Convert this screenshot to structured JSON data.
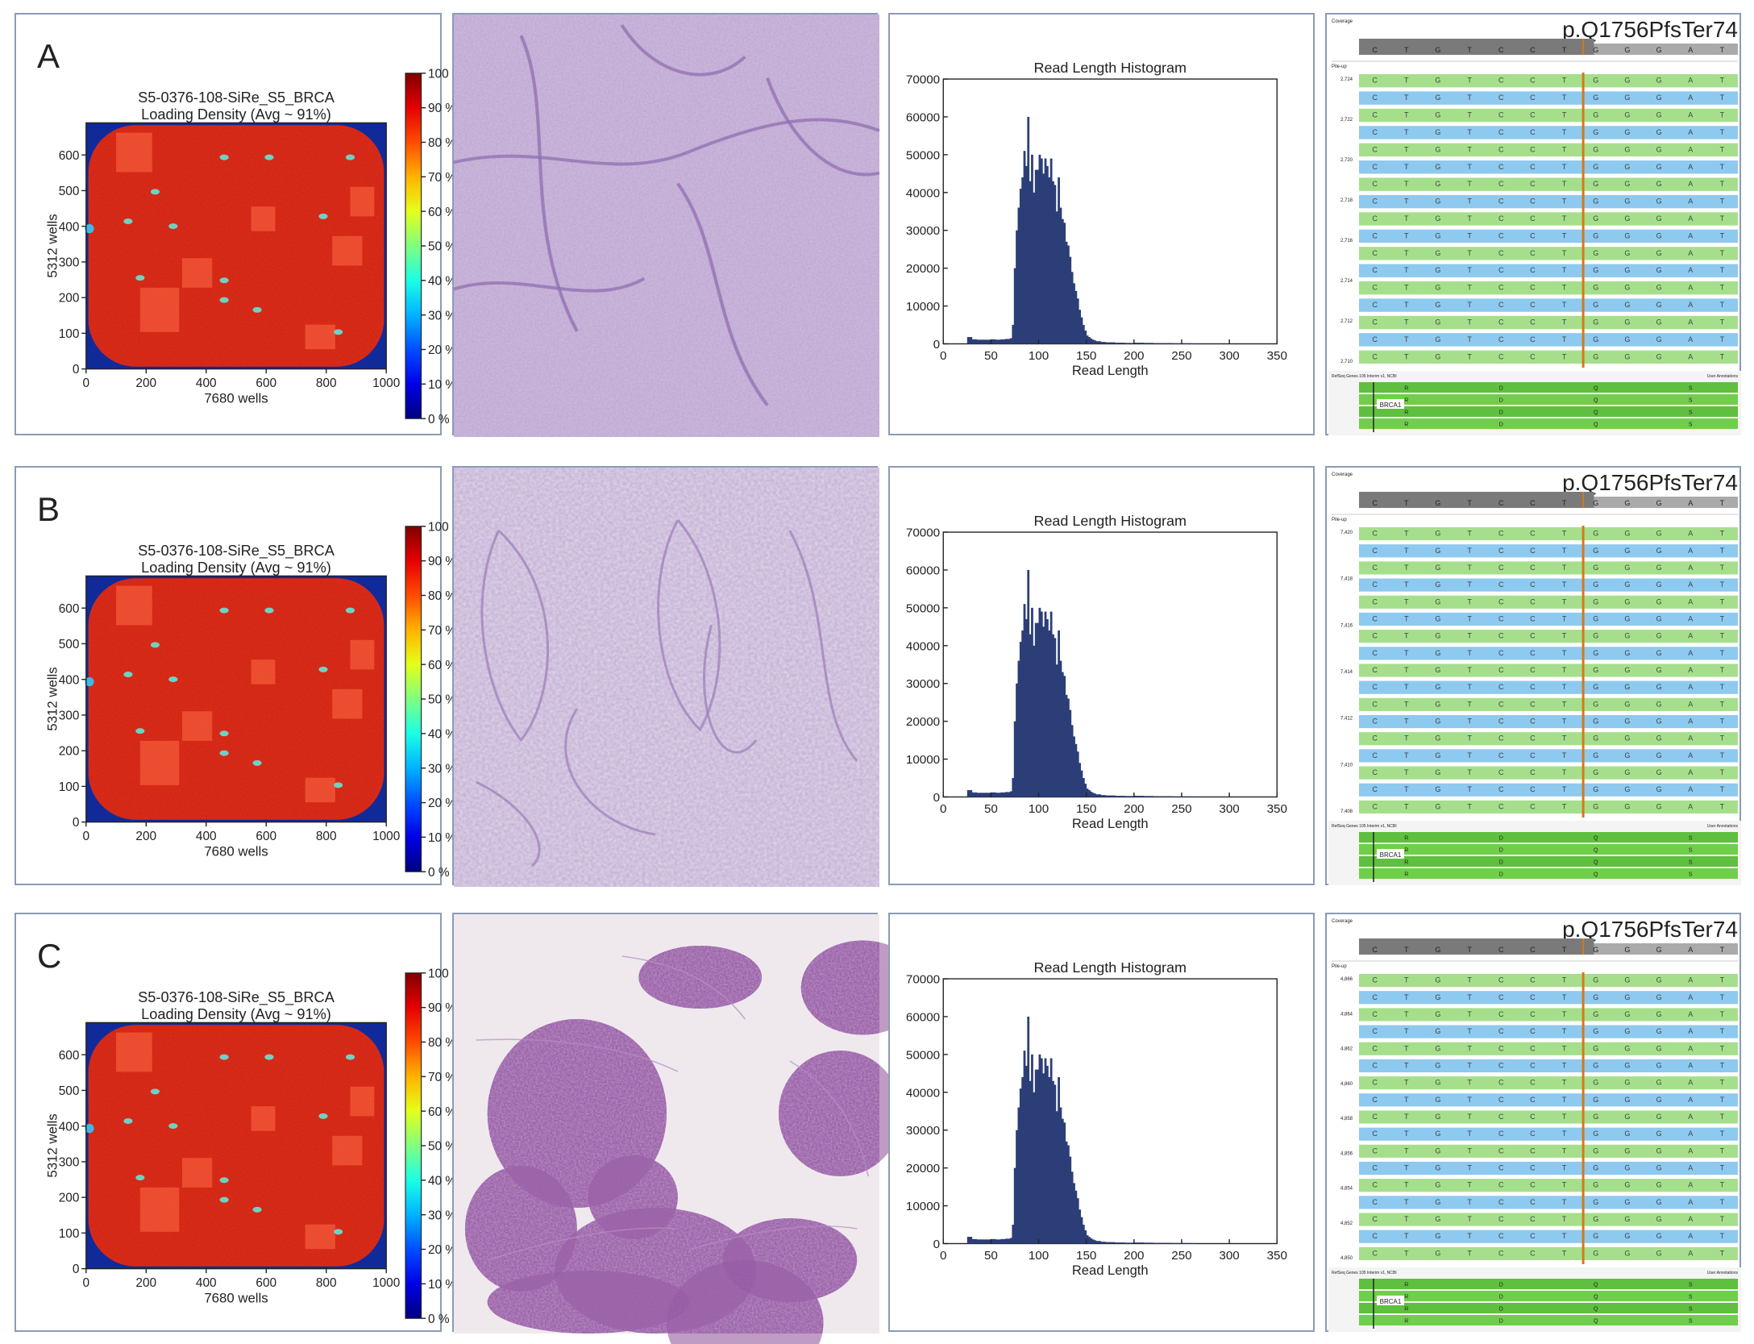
{
  "rows": [
    {
      "label": "A",
      "chip": {
        "title": "S5-0376-108-SiRe_S5_BRCA",
        "subtitle": "Loading Density (Avg ~ 91%)",
        "xlabel": "7680 wells",
        "ylabel": "5312 wells"
      },
      "tissue": "he",
      "histogram": {
        "title": "Read Length Histogram",
        "xlabel": "Read Length"
      },
      "igv": {
        "mutation": "p.Q1756PfsTer74",
        "gene": "BRCA1",
        "coverage_label": "Coverage",
        "pileup_label": "Pile-up",
        "annotation_left": "RefSeq Genes 105 Interim v1, NCBI",
        "annotation_right": "User Annotations",
        "ticks": [
          "2,724",
          "2,722",
          "2,720",
          "2,718",
          "2,716",
          "2,714",
          "2,712",
          "2,710"
        ]
      }
    },
    {
      "label": "B",
      "chip": {
        "title": "S5-0376-108-SiRe_S5_BRCA",
        "subtitle": "Loading Density (Avg ~ 91%)",
        "xlabel": "7680 wells",
        "ylabel": "5312 wells"
      },
      "tissue": "pale",
      "histogram": {
        "title": "Read Length Histogram",
        "xlabel": "Read Length"
      },
      "igv": {
        "mutation": "p.Q1756PfsTer74",
        "gene": "BRCA1",
        "coverage_label": "Coverage",
        "pileup_label": "Pile-up",
        "annotation_left": "RefSeq Genes 105 Interim v1, NCBI",
        "annotation_right": "User Annotations",
        "ticks": [
          "7,420",
          "7,418",
          "7,416",
          "7,414",
          "7,412",
          "7,410",
          "7,408"
        ]
      }
    },
    {
      "label": "C",
      "chip": {
        "title": "S5-0376-108-SiRe_S5_BRCA",
        "subtitle": "Loading Density (Avg ~ 91%)",
        "xlabel": "7680 wells",
        "ylabel": "5312 wells"
      },
      "tissue": "cyto",
      "histogram": {
        "title": "Read Length Histogram",
        "xlabel": "Read Length"
      },
      "igv": {
        "mutation": "p.Q1756PfsTer74",
        "gene": "BRCA1",
        "coverage_label": "Coverage",
        "pileup_label": "Pile-up",
        "annotation_left": "RefSeq Genes 105 Interim v1, NCBI",
        "annotation_right": "User Annotations",
        "ticks": [
          "4,866",
          "4,864",
          "4,862",
          "4,860",
          "4,858",
          "4,856",
          "4,854",
          "4,852",
          "4,850"
        ]
      }
    }
  ],
  "colorbar": {
    "ticks": [
      "100 %",
      "90 %",
      "80 %",
      "70 %",
      "60 %",
      "50 %",
      "40 %",
      "30 %",
      "20 %",
      "10 %",
      "0 %"
    ]
  },
  "colors": {
    "chip_fill": "#e0321c",
    "chip_bg": "#102a9a",
    "hist_bar": "#2c3e78",
    "read_blue": "#8ec9ef",
    "read_green": "#a6df8c",
    "mut_line": "#d4791a",
    "coverage_gray": "#7a7a7a",
    "gene_green": "#5fbf3f"
  },
  "igv_sequence": [
    "C",
    "T",
    "G",
    "T",
    "C",
    "C",
    "T",
    "G",
    "G",
    "G",
    "A",
    "T"
  ],
  "igv_amino": [
    "R",
    "D",
    "Q",
    "S"
  ],
  "chart_data": [
    {
      "type": "heatmap",
      "title": "S5-0376-108-SiRe_S5_BRCA",
      "subtitle": "Loading Density (Avg ~ 91%)",
      "xlabel": "7680 wells",
      "ylabel": "5312 wells",
      "xlim": [
        0,
        1000
      ],
      "ylim": [
        0,
        690
      ],
      "xticks": [
        "0",
        "200",
        "400",
        "600",
        "800",
        "1000"
      ],
      "yticks": [
        "0",
        "100",
        "200",
        "300",
        "400",
        "500",
        "600"
      ],
      "colorbar_range": [
        0,
        100
      ],
      "colorbar_unit": "%",
      "average_density_pct": 91
    },
    {
      "type": "bar",
      "title": "Read Length Histogram",
      "xlabel": "Read Length",
      "ylabel": "",
      "xlim": [
        0,
        350
      ],
      "ylim": [
        0,
        70000
      ],
      "xticks": [
        "0",
        "50",
        "100",
        "150",
        "200",
        "250",
        "300",
        "350"
      ],
      "yticks": [
        "0",
        "10000",
        "20000",
        "30000",
        "40000",
        "50000",
        "60000",
        "70000"
      ],
      "x": [
        25,
        30,
        35,
        40,
        45,
        50,
        55,
        60,
        65,
        70,
        72,
        74,
        76,
        78,
        80,
        82,
        84,
        86,
        88,
        90,
        92,
        94,
        96,
        98,
        100,
        102,
        104,
        106,
        108,
        110,
        112,
        114,
        116,
        118,
        120,
        122,
        124,
        126,
        128,
        130,
        132,
        134,
        136,
        138,
        140,
        142,
        144,
        146,
        148,
        150,
        152,
        154,
        156,
        158,
        160,
        165,
        170,
        180,
        190,
        200,
        210,
        220,
        230,
        240,
        250,
        260
      ],
      "values": [
        1800,
        1200,
        1100,
        1100,
        1100,
        1200,
        1100,
        1200,
        1300,
        1500,
        5000,
        20000,
        30000,
        36000,
        41000,
        44000,
        51000,
        47000,
        60000,
        43000,
        50000,
        40000,
        46000,
        46000,
        50000,
        49000,
        45000,
        49000,
        47000,
        44000,
        49000,
        43000,
        42000,
        35000,
        44000,
        36000,
        33000,
        32000,
        27000,
        26000,
        23000,
        19000,
        16000,
        14000,
        12000,
        9000,
        7000,
        5000,
        3500,
        2200,
        1800,
        1400,
        1100,
        900,
        700,
        500,
        400,
        300,
        250,
        300,
        250,
        200,
        200,
        150,
        150,
        120
      ]
    }
  ]
}
